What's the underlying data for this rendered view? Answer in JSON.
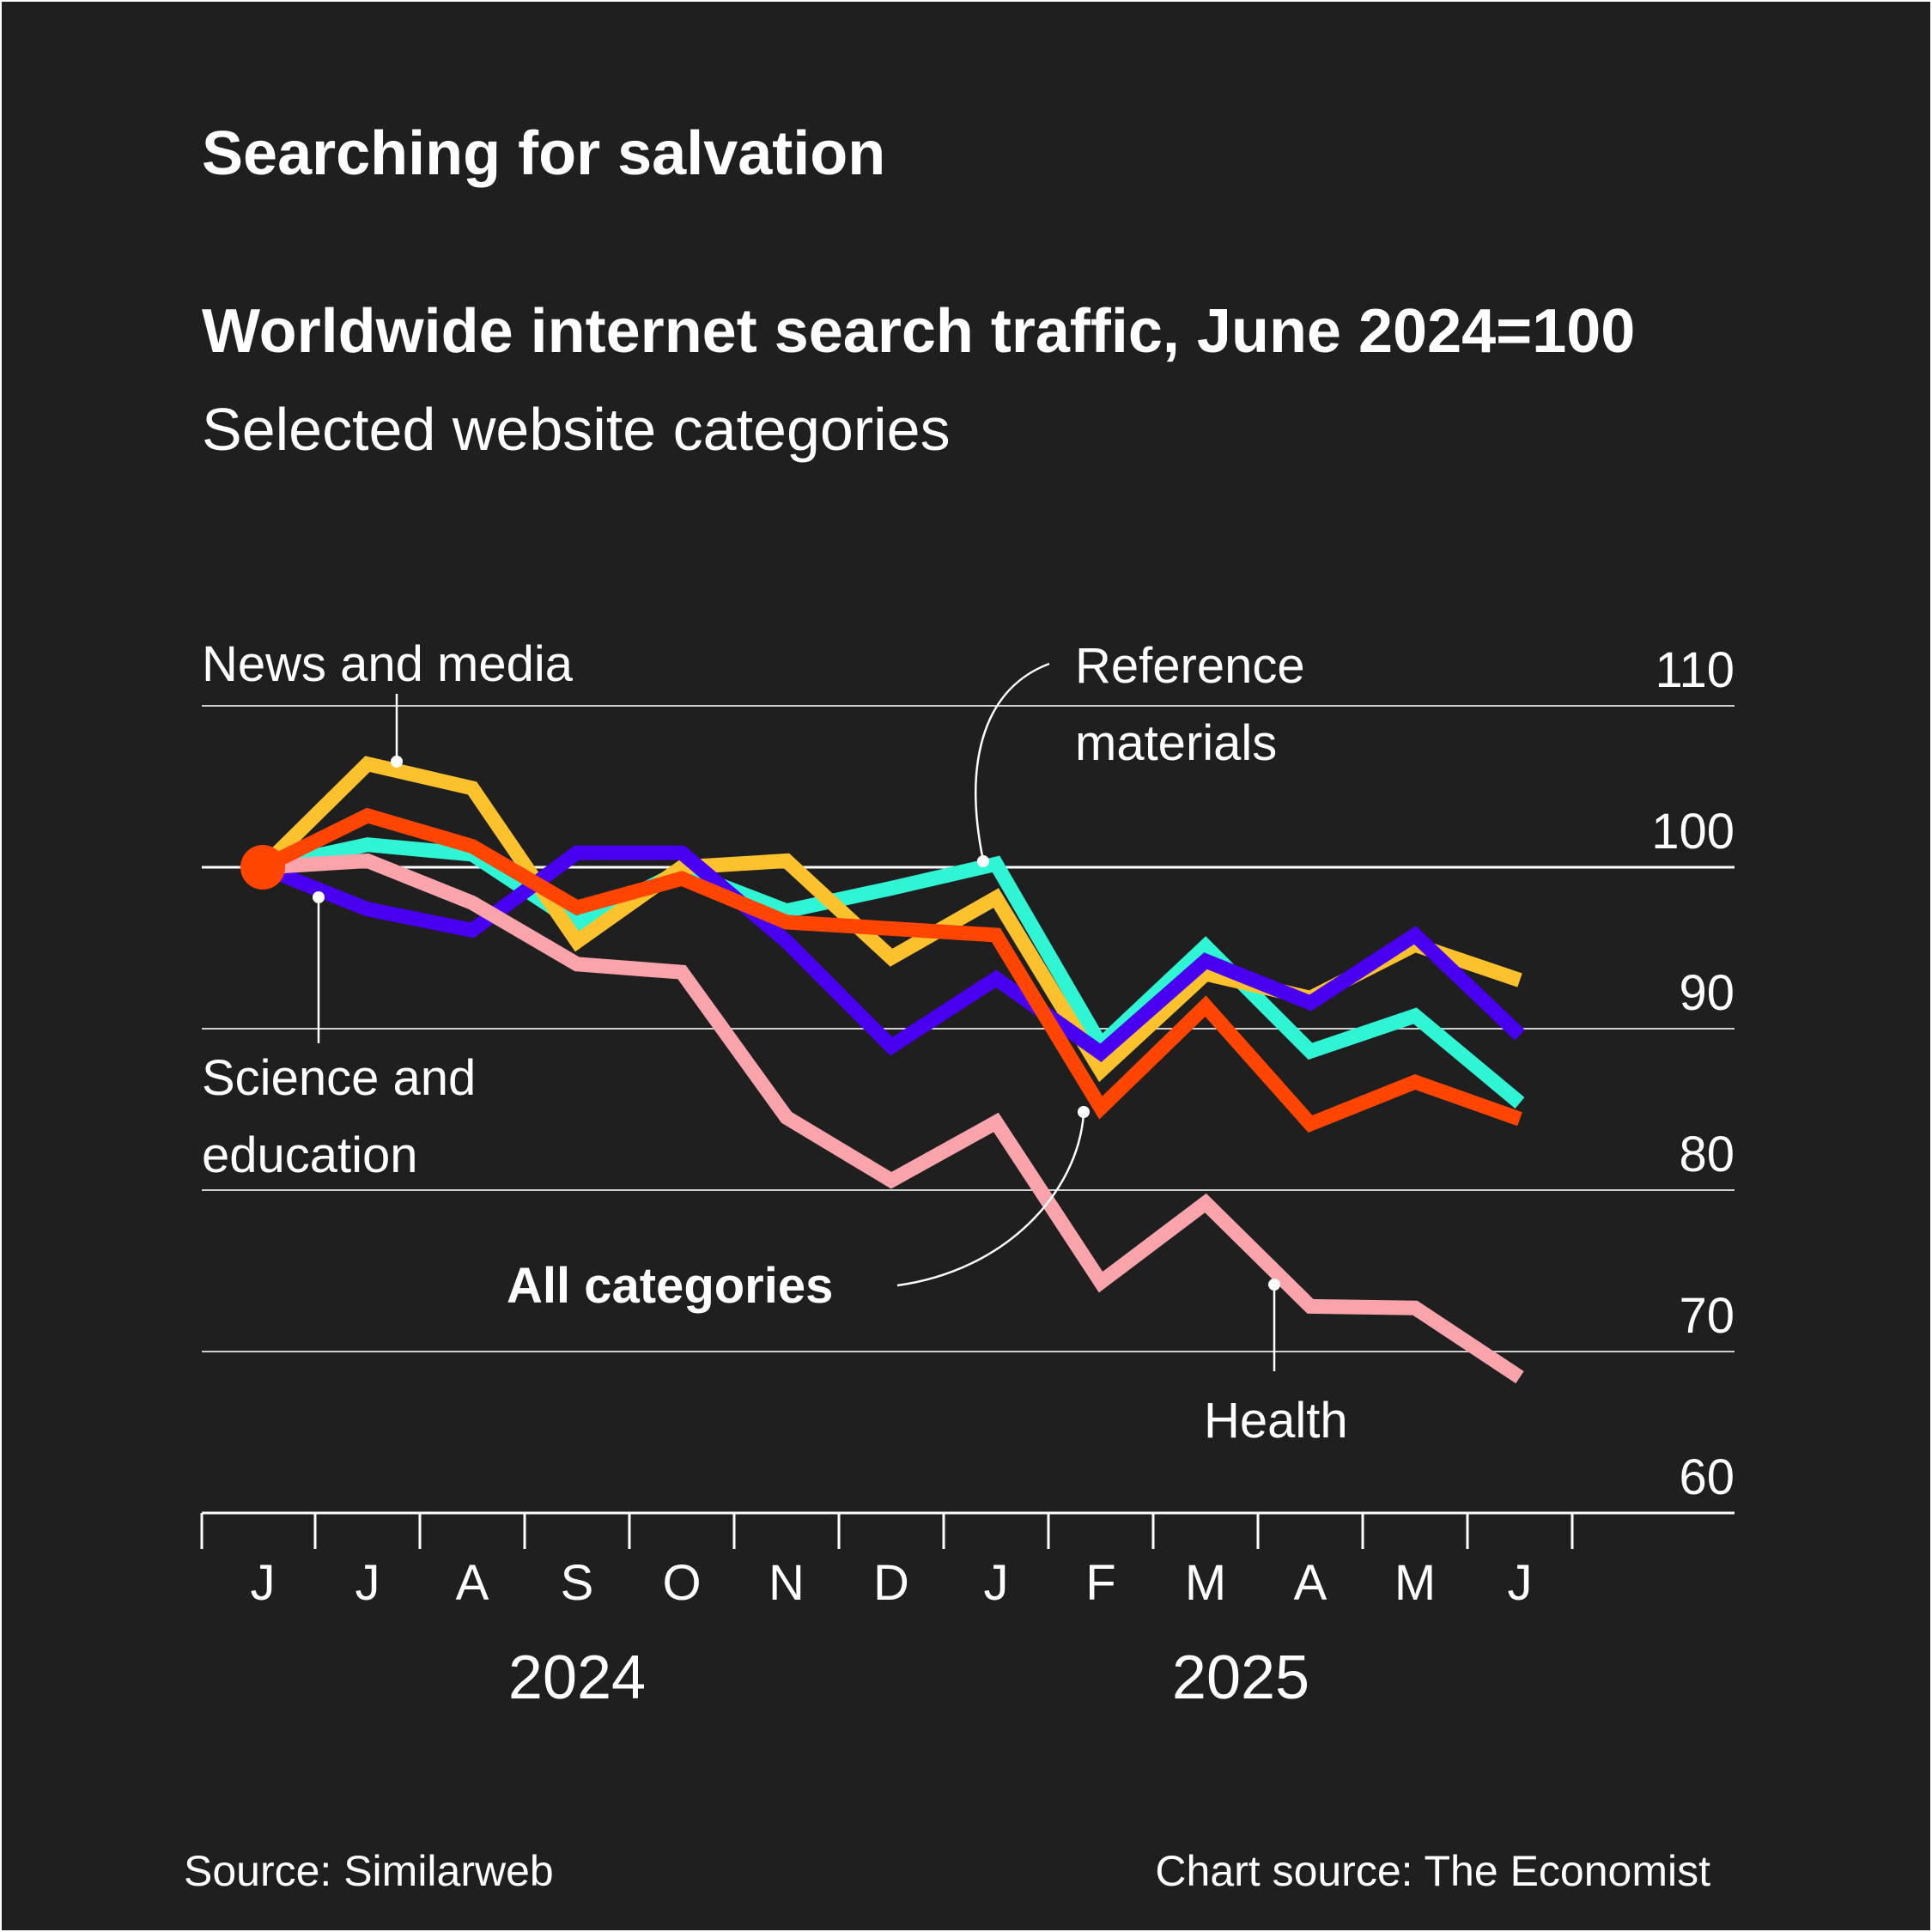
{
  "title": "Searching for salvation",
  "subtitle": "Worldwide internet search traffic, June 2024=100",
  "description": "Selected website categories",
  "source": "Source: Similarweb",
  "chart_credit": "Chart source: The Economist",
  "chart_data": {
    "type": "line",
    "x": [
      "J",
      "J",
      "A",
      "S",
      "O",
      "N",
      "D",
      "J",
      "F",
      "M",
      "A",
      "M",
      "J"
    ],
    "x_years": [
      "2024",
      "2025"
    ],
    "ylim": [
      60,
      110
    ],
    "yticks": [
      60,
      70,
      80,
      90,
      100,
      110
    ],
    "y_axis_position": "right",
    "grid": true,
    "series": [
      {
        "name": "Reference materials",
        "color": "#2ff5d5",
        "values": [
          100,
          101.4,
          100.8,
          96.5,
          99.8,
          97.3,
          98.7,
          100.2,
          89,
          95.1,
          88.6,
          90.8,
          85.4
        ]
      },
      {
        "name": "News and media",
        "color": "#fcc22e",
        "values": [
          100,
          106.4,
          104.9,
          95.4,
          100,
          100.4,
          94.4,
          98.1,
          87.4,
          93.4,
          91.9,
          95.2,
          93
        ]
      },
      {
        "name": "Science and education",
        "color": "#4a00f0",
        "values": [
          100,
          97.4,
          96.1,
          100.9,
          100.9,
          95.4,
          88.9,
          93.1,
          88.5,
          94.2,
          91.6,
          95.8,
          89.6
        ]
      },
      {
        "name": "Health",
        "color": "#f9a3ab",
        "values": [
          100,
          100.4,
          97.8,
          94,
          93.5,
          84.5,
          80.6,
          84.2,
          74.3,
          79.2,
          72.8,
          72.7,
          68.4
        ]
      },
      {
        "name": "All categories",
        "color": "#ff4500",
        "values": [
          100,
          103.2,
          101.3,
          97.5,
          99.3,
          96.6,
          96.2,
          95.8,
          85.1,
          91.4,
          84.1,
          86.7,
          84.4
        ]
      }
    ],
    "annotations": {
      "news": "News and media",
      "reference": [
        "Reference",
        "materials"
      ],
      "science": [
        "Science and",
        "education"
      ],
      "all": "All categories",
      "health": "Health"
    }
  }
}
